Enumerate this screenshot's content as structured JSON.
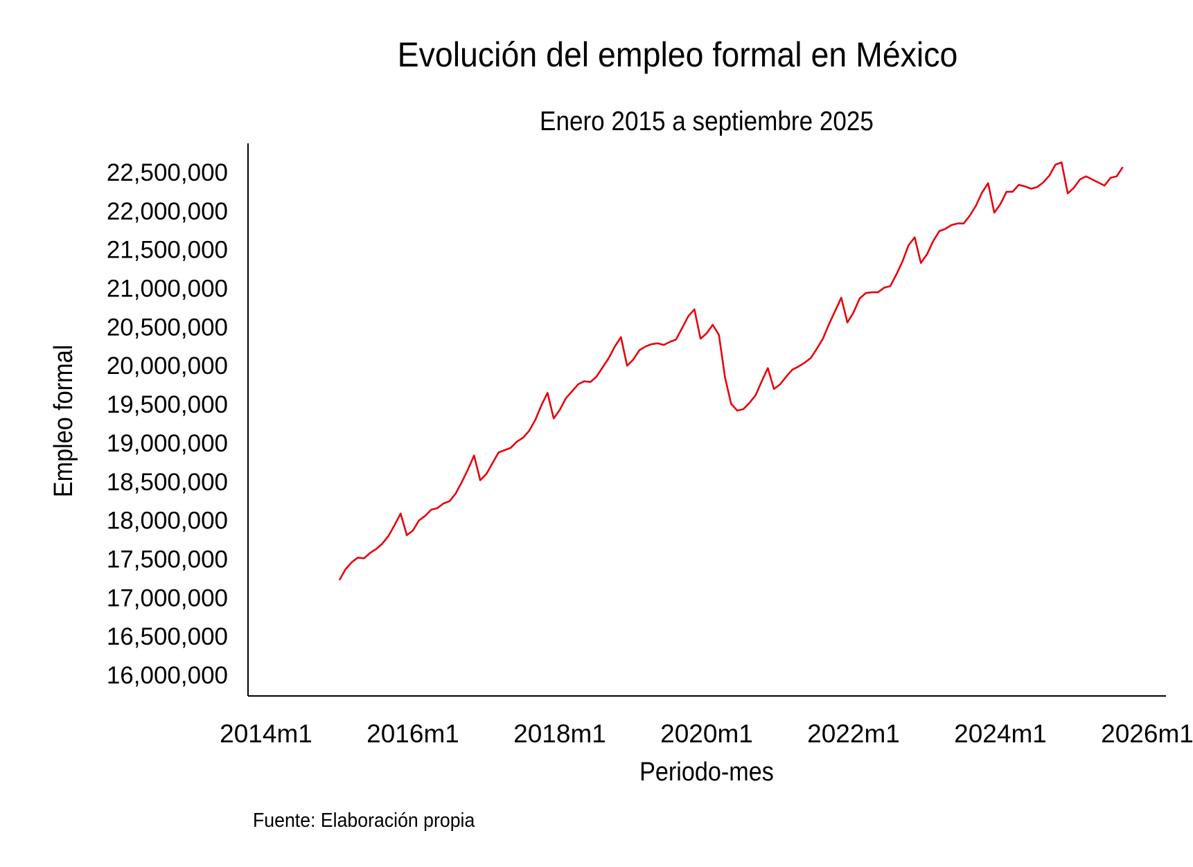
{
  "chart_data": {
    "type": "line",
    "title": "Evolución del empleo formal en México",
    "subtitle": "Enero 2015 a septiembre 2025",
    "xlabel": "Periodo-mes",
    "ylabel": "Empleo formal",
    "source": "Fuente: Elaboración propia",
    "x_start": "2015m1",
    "x_end": "2025m9",
    "xlim": [
      "2014m1",
      "2026m1"
    ],
    "ylim": [
      16000000,
      22500000
    ],
    "x_ticks": [
      "2014m1",
      "2016m1",
      "2018m1",
      "2020m1",
      "2022m1",
      "2024m1",
      "2026m1"
    ],
    "y_ticks": [
      "22,500,000",
      "22,000,000",
      "21,500,000",
      "21,000,000",
      "20,500,000",
      "20,000,000",
      "19,500,000",
      "19,000,000",
      "18,500,000",
      "18,000,000",
      "17,500,000",
      "17,000,000",
      "16,500,000",
      "16,000,000"
    ],
    "grid": false,
    "line_color": "#e8000b",
    "series": [
      {
        "values": [
          17230000,
          17370000,
          17460000,
          17520000,
          17510000,
          17580000,
          17630000,
          17700000,
          17800000,
          17940000,
          18090000,
          17810000,
          17870000,
          18000000,
          18060000,
          18140000,
          18160000,
          18220000,
          18250000,
          18350000,
          18500000,
          18660000,
          18840000,
          18520000,
          18600000,
          18740000,
          18880000,
          18910000,
          18940000,
          19020000,
          19070000,
          19160000,
          19300000,
          19490000,
          19650000,
          19320000,
          19430000,
          19580000,
          19670000,
          19760000,
          19800000,
          19790000,
          19860000,
          19980000,
          20100000,
          20250000,
          20370000,
          20000000,
          20080000,
          20200000,
          20250000,
          20280000,
          20290000,
          20270000,
          20310000,
          20340000,
          20490000,
          20640000,
          20730000,
          20350000,
          20420000,
          20530000,
          20400000,
          19850000,
          19510000,
          19420000,
          19440000,
          19520000,
          19620000,
          19800000,
          19970000,
          19700000,
          19760000,
          19860000,
          19950000,
          19990000,
          20040000,
          20100000,
          20220000,
          20350000,
          20540000,
          20710000,
          20880000,
          20560000,
          20690000,
          20870000,
          20940000,
          20950000,
          20950000,
          21010000,
          21030000,
          21180000,
          21350000,
          21560000,
          21660000,
          21330000,
          21440000,
          21610000,
          21740000,
          21770000,
          21820000,
          21840000,
          21840000,
          21940000,
          22070000,
          22240000,
          22360000,
          21980000,
          22090000,
          22250000,
          22250000,
          22340000,
          22320000,
          22290000,
          22310000,
          22370000,
          22460000,
          22600000,
          22630000,
          22230000,
          22300000,
          22410000,
          22450000,
          22410000,
          22370000,
          22330000,
          22430000,
          22450000,
          22570000
        ]
      }
    ]
  }
}
